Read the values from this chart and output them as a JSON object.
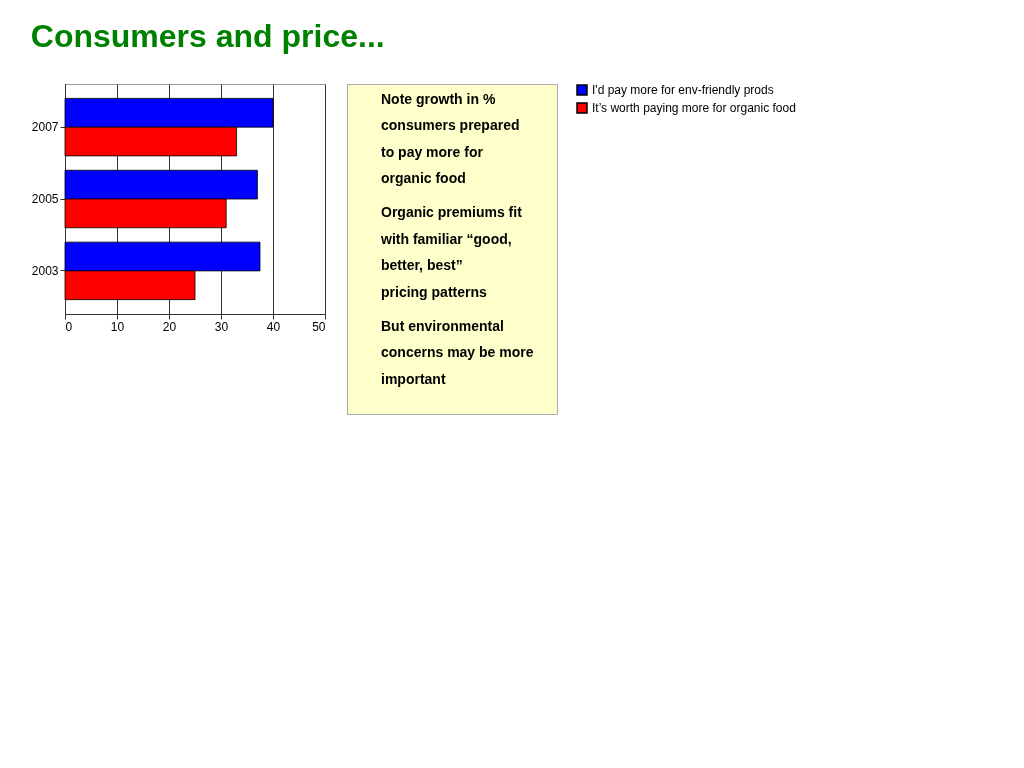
{
  "chart_data": {
    "type": "bar",
    "orientation": "horizontal",
    "title": "Consumers and price...",
    "categories": [
      "2007",
      "2005",
      "2003"
    ],
    "series": [
      {
        "name": "I'd pay more for env-friendly prods",
        "color": "#0000ff",
        "values": [
          40,
          37,
          37.5
        ]
      },
      {
        "name": "It’s worth paying more for organic food",
        "color": "#ff0000",
        "values": [
          33,
          31,
          25
        ]
      }
    ],
    "xlim": [
      0,
      50
    ],
    "xticks": [
      0,
      10,
      20,
      30,
      40,
      50
    ],
    "grid": "x",
    "legend": "right",
    "annotations": [
      "Note growth in % consumers prepared to pay more for organic food",
      "Organic premiums fit with familiar “good, better, best” pricing patterns",
      "But environmental concerns may be more important"
    ]
  }
}
